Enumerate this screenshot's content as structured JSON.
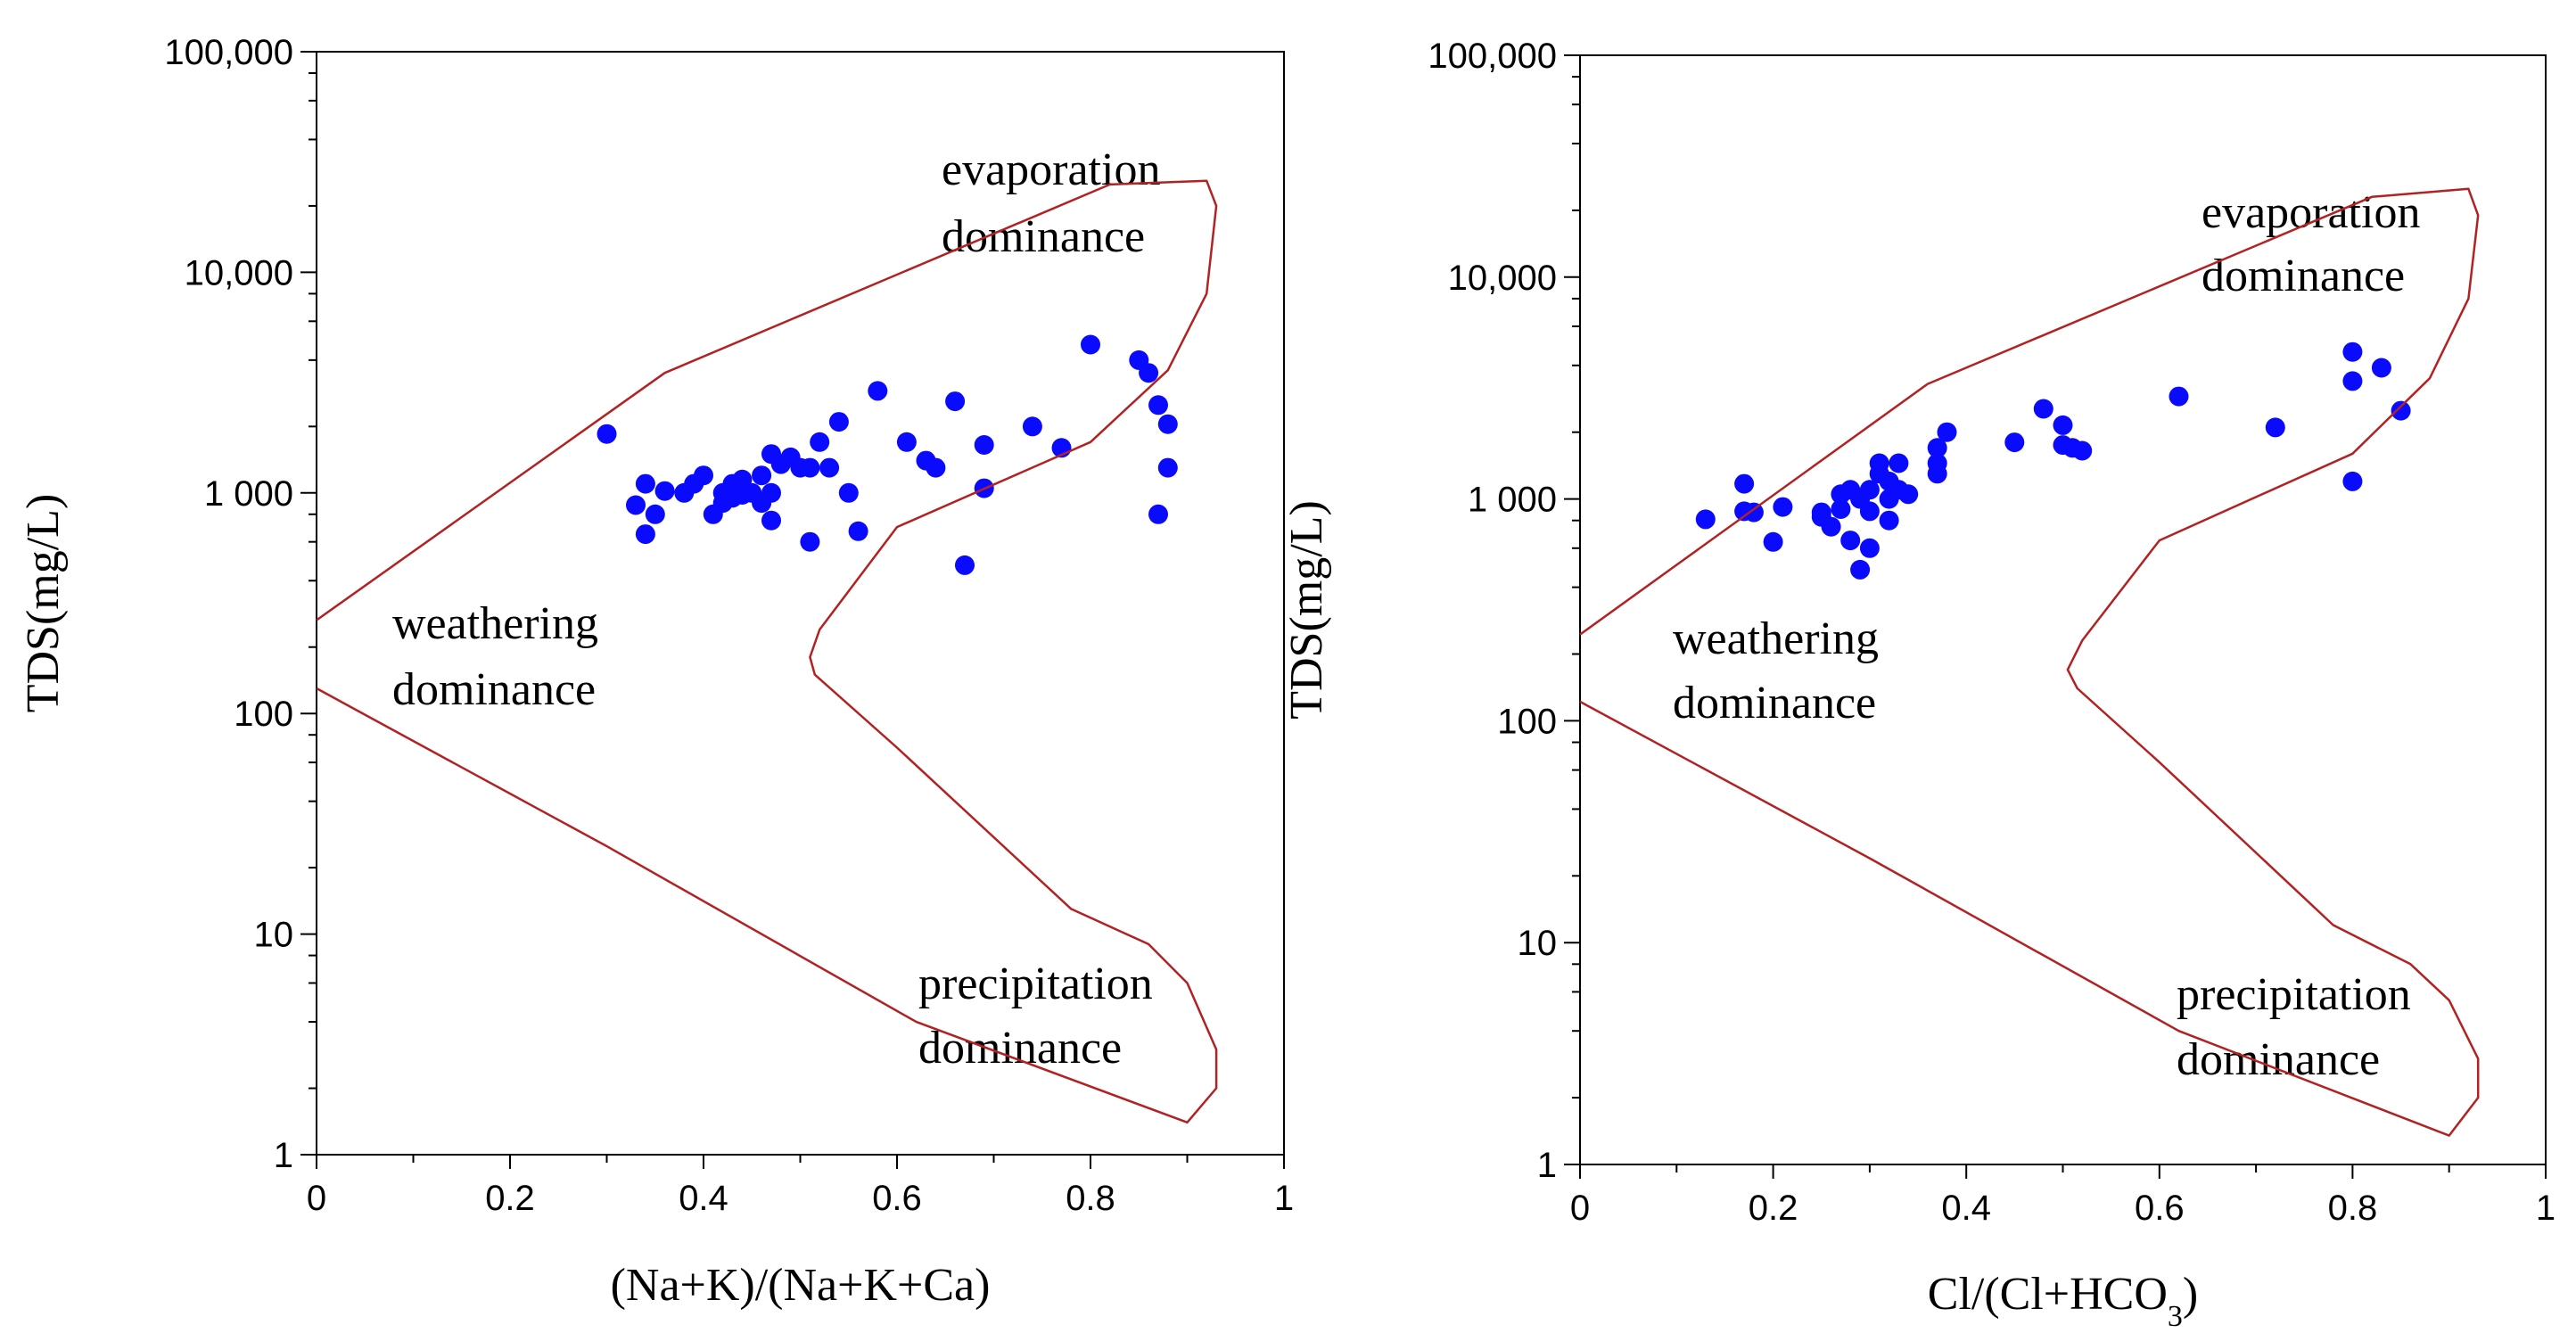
{
  "colors": {
    "envelope": "#b22222",
    "points": "#0a0aff",
    "axis": "#000000"
  },
  "chart_data": [
    {
      "type": "scatter",
      "title": "",
      "xlabel": "(Na+K)/(Na+K+Ca)",
      "xlabel_sub": "",
      "xlabel_tail": "",
      "ylabel": "TDS(mg/L)",
      "xlim": [
        0,
        1
      ],
      "ylim": [
        1,
        100000
      ],
      "yscale": "log",
      "x_ticks": [
        0,
        0.2,
        0.4,
        0.6,
        0.8,
        1
      ],
      "x_tick_labels": [
        "0",
        "0.2",
        "0.4",
        "0.6",
        "0.8",
        "1"
      ],
      "y_ticks": [
        1,
        10,
        100,
        1000,
        10000,
        100000
      ],
      "y_tick_labels": [
        "1",
        "10",
        "100",
        "1 000",
        "10,000",
        "100,000"
      ],
      "region_labels": {
        "evaporation": [
          "evaporation",
          "dominance"
        ],
        "weathering": [
          "weathering",
          "dominance"
        ],
        "precipitation": [
          "precipitation",
          "dominance"
        ]
      },
      "envelope": [
        [
          0,
          265
        ],
        [
          0.36,
          3500
        ],
        [
          0.82,
          25000
        ],
        [
          0.92,
          26000
        ],
        [
          0.93,
          20000
        ],
        [
          0.92,
          8000
        ],
        [
          0.88,
          3600
        ],
        [
          0.8,
          1700
        ],
        [
          0.6,
          700
        ],
        [
          0.52,
          240
        ],
        [
          0.51,
          180
        ],
        [
          0.515,
          150
        ],
        [
          0.6,
          70
        ],
        [
          0.78,
          13
        ],
        [
          0.86,
          9
        ],
        [
          0.9,
          6
        ],
        [
          0.93,
          3
        ],
        [
          0.93,
          2
        ],
        [
          0.9,
          1.4
        ],
        [
          0.62,
          4
        ],
        [
          0.3,
          25
        ],
        [
          0,
          130
        ]
      ],
      "points": [
        [
          0.3,
          1850
        ],
        [
          0.33,
          880
        ],
        [
          0.34,
          1100
        ],
        [
          0.34,
          650
        ],
        [
          0.35,
          800
        ],
        [
          0.36,
          1020
        ],
        [
          0.38,
          1000
        ],
        [
          0.39,
          1100
        ],
        [
          0.4,
          1200
        ],
        [
          0.41,
          800
        ],
        [
          0.42,
          900
        ],
        [
          0.42,
          1000
        ],
        [
          0.43,
          950
        ],
        [
          0.43,
          1100
        ],
        [
          0.44,
          1150
        ],
        [
          0.44,
          980
        ],
        [
          0.45,
          1000
        ],
        [
          0.46,
          900
        ],
        [
          0.46,
          1200
        ],
        [
          0.47,
          1000
        ],
        [
          0.47,
          750
        ],
        [
          0.47,
          1500
        ],
        [
          0.48,
          1350
        ],
        [
          0.49,
          1450
        ],
        [
          0.5,
          1300
        ],
        [
          0.51,
          1300
        ],
        [
          0.51,
          600
        ],
        [
          0.52,
          1700
        ],
        [
          0.53,
          1300
        ],
        [
          0.54,
          2100
        ],
        [
          0.55,
          1000
        ],
        [
          0.56,
          670
        ],
        [
          0.58,
          2900
        ],
        [
          0.61,
          1700
        ],
        [
          0.63,
          1400
        ],
        [
          0.64,
          1300
        ],
        [
          0.66,
          2600
        ],
        [
          0.67,
          470
        ],
        [
          0.69,
          1050
        ],
        [
          0.69,
          1650
        ],
        [
          0.74,
          2000
        ],
        [
          0.77,
          1600
        ],
        [
          0.8,
          4700
        ],
        [
          0.85,
          4000
        ],
        [
          0.86,
          3500
        ],
        [
          0.87,
          2500
        ],
        [
          0.87,
          800
        ],
        [
          0.88,
          2050
        ],
        [
          0.88,
          1300
        ]
      ]
    },
    {
      "type": "scatter",
      "title": "",
      "xlabel": "Cl/(Cl+HCO",
      "xlabel_sub": "3",
      "xlabel_tail": ")",
      "ylabel": "TDS(mg/L)",
      "xlim": [
        0,
        1
      ],
      "ylim": [
        1,
        100000
      ],
      "yscale": "log",
      "x_ticks": [
        0,
        0.2,
        0.4,
        0.6,
        0.8,
        1
      ],
      "x_tick_labels": [
        "0",
        "0.2",
        "0.4",
        "0.6",
        "0.8",
        "1"
      ],
      "y_ticks": [
        1,
        10,
        100,
        1000,
        10000,
        100000
      ],
      "y_tick_labels": [
        "1",
        "10",
        "100",
        "1 000",
        "10,000",
        "100,000"
      ],
      "region_labels": {
        "evaporation": [
          "evaporation",
          "dominance"
        ],
        "weathering": [
          "weathering",
          "dominance"
        ],
        "precipitation": [
          "precipitation",
          "dominance"
        ]
      },
      "envelope": [
        [
          0,
          245
        ],
        [
          0.36,
          3300
        ],
        [
          0.82,
          23000
        ],
        [
          0.92,
          25000
        ],
        [
          0.93,
          19000
        ],
        [
          0.92,
          8000
        ],
        [
          0.88,
          3500
        ],
        [
          0.8,
          1600
        ],
        [
          0.6,
          650
        ],
        [
          0.52,
          230
        ],
        [
          0.505,
          170
        ],
        [
          0.515,
          140
        ],
        [
          0.6,
          65
        ],
        [
          0.78,
          12
        ],
        [
          0.86,
          8
        ],
        [
          0.9,
          5.5
        ],
        [
          0.93,
          3
        ],
        [
          0.93,
          2
        ],
        [
          0.9,
          1.35
        ],
        [
          0.62,
          4
        ],
        [
          0.3,
          24
        ],
        [
          0,
          122
        ]
      ],
      "points": [
        [
          0.13,
          810
        ],
        [
          0.17,
          1170
        ],
        [
          0.17,
          880
        ],
        [
          0.18,
          870
        ],
        [
          0.2,
          640
        ],
        [
          0.21,
          920
        ],
        [
          0.25,
          830
        ],
        [
          0.25,
          870
        ],
        [
          0.26,
          750
        ],
        [
          0.27,
          1050
        ],
        [
          0.27,
          900
        ],
        [
          0.28,
          1100
        ],
        [
          0.28,
          650
        ],
        [
          0.29,
          480
        ],
        [
          0.29,
          1000
        ],
        [
          0.3,
          1100
        ],
        [
          0.3,
          600
        ],
        [
          0.3,
          880
        ],
        [
          0.31,
          1300
        ],
        [
          0.31,
          1450
        ],
        [
          0.32,
          1000
        ],
        [
          0.32,
          1200
        ],
        [
          0.32,
          800
        ],
        [
          0.33,
          1100
        ],
        [
          0.33,
          1450
        ],
        [
          0.34,
          1050
        ],
        [
          0.37,
          1300
        ],
        [
          0.37,
          1450
        ],
        [
          0.37,
          1700
        ],
        [
          0.38,
          2000
        ],
        [
          0.45,
          1800
        ],
        [
          0.48,
          2550
        ],
        [
          0.5,
          2150
        ],
        [
          0.5,
          1750
        ],
        [
          0.51,
          1700
        ],
        [
          0.52,
          1650
        ],
        [
          0.62,
          2900
        ],
        [
          0.72,
          2100
        ],
        [
          0.8,
          4600
        ],
        [
          0.8,
          3400
        ],
        [
          0.8,
          1200
        ],
        [
          0.83,
          3900
        ],
        [
          0.85,
          2500
        ]
      ]
    }
  ]
}
